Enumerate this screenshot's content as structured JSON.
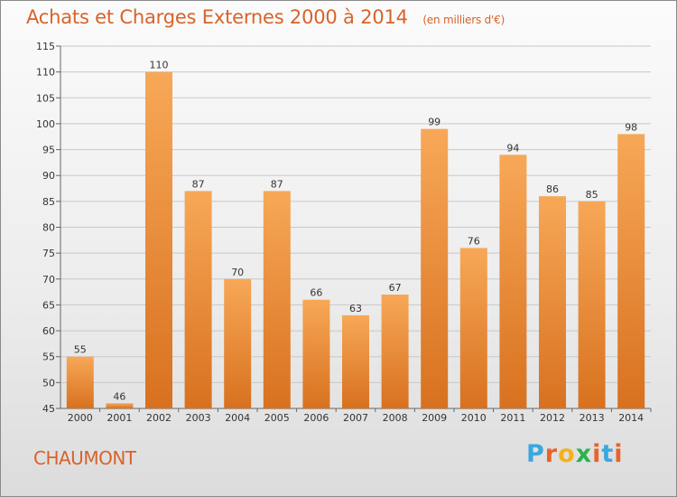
{
  "header": {
    "title": "Achats et Charges Externes 2000 à 2014",
    "subtitle": "(en milliers d'€)"
  },
  "footer": {
    "place": "CHAUMONT"
  },
  "logo": {
    "letters": [
      "P",
      "r",
      "o",
      "x",
      "i",
      "t",
      "i"
    ],
    "colors": [
      "#3aa8e0",
      "#e8632a",
      "#f3b21c",
      "#2bb24c",
      "#e8632a",
      "#3aa8e0",
      "#e8632a"
    ]
  },
  "colors": {
    "bar_top": "#f7a857",
    "bar_bottom": "#d8711f",
    "title": "#d8632a",
    "grid": "#c8c8c8"
  },
  "chart_data": {
    "type": "bar",
    "title": "Achats et Charges Externes 2000 à 2014",
    "subtitle": "(en milliers d'€)",
    "categories": [
      "2000",
      "2001",
      "2002",
      "2003",
      "2004",
      "2005",
      "2006",
      "2007",
      "2008",
      "2009",
      "2010",
      "2011",
      "2012",
      "2013",
      "2014"
    ],
    "values": [
      55,
      46,
      110,
      87,
      70,
      87,
      66,
      63,
      67,
      99,
      76,
      94,
      86,
      85,
      98
    ],
    "ylim": [
      45,
      115
    ],
    "yticks": [
      45,
      50,
      55,
      60,
      65,
      70,
      75,
      80,
      85,
      90,
      95,
      100,
      105,
      110,
      115
    ],
    "grid": true,
    "data_labels": true
  }
}
